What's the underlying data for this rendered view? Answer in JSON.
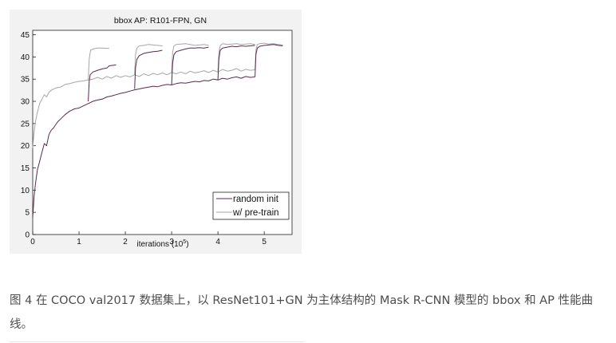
{
  "chart_data": {
    "type": "line",
    "title": "bbox AP: R101-FPN, GN",
    "xlabel": "iterations (10",
    "xlabel_exp": "5",
    "xlabel_close": ")",
    "ylabel": "",
    "xlim": [
      0,
      5.6
    ],
    "ylim": [
      0,
      46
    ],
    "xticks": [
      0,
      1,
      2,
      3,
      4,
      5
    ],
    "xtick_labels": [
      "0",
      "1",
      "2",
      "3",
      "4",
      "5"
    ],
    "yticks": [
      0,
      5,
      10,
      15,
      20,
      25,
      30,
      35,
      40,
      45
    ],
    "ytick_labels": [
      "0",
      "5",
      "10",
      "15",
      "20",
      "25",
      "30",
      "35",
      "40",
      "45"
    ],
    "grid": false,
    "legend_position": "bottom-right",
    "series": [
      {
        "name": "random init",
        "color": "#5a2a4a",
        "segments": [
          {
            "x": [
              0.0,
              0.03,
              0.06,
              0.1,
              0.15,
              0.2,
              0.25,
              0.3,
              0.35,
              0.4,
              0.45,
              0.5,
              0.55,
              0.6,
              0.7,
              0.8,
              0.9,
              1.0,
              1.1,
              1.2,
              1.3,
              1.4,
              1.5,
              1.6,
              1.7,
              1.8,
              1.9,
              2.0,
              2.1,
              2.2,
              2.3,
              2.4,
              2.5,
              2.6,
              2.7,
              2.8,
              2.9,
              3.0,
              3.1,
              3.2,
              3.3,
              3.4,
              3.5,
              3.6,
              3.7,
              3.8,
              3.9,
              4.0,
              4.1,
              4.2,
              4.3,
              4.4,
              4.5,
              4.6,
              4.7,
              4.8
            ],
            "y": [
              3.8,
              8.5,
              11.5,
              14.5,
              16.5,
              18.5,
              20.5,
              20.0,
              22.5,
              23.5,
              24.0,
              24.8,
              25.5,
              26.0,
              27.0,
              27.8,
              28.3,
              28.5,
              29.0,
              29.5,
              30.0,
              30.3,
              30.5,
              31.0,
              31.2,
              31.5,
              31.8,
              32.0,
              32.3,
              32.6,
              32.8,
              33.0,
              33.2,
              33.4,
              33.3,
              33.6,
              33.8,
              33.7,
              34.0,
              34.2,
              34.1,
              34.3,
              34.5,
              34.4,
              34.7,
              34.6,
              35.0,
              34.8,
              35.2,
              35.0,
              35.3,
              35.5,
              35.2,
              35.6,
              35.4,
              35.5
            ]
          },
          {
            "x": [
              1.2,
              1.22,
              1.24,
              1.3,
              1.4,
              1.5,
              1.6,
              1.65,
              1.8
            ],
            "y": [
              30.0,
              34.5,
              36.0,
              36.6,
              37.0,
              37.3,
              37.5,
              38.0,
              38.2
            ]
          },
          {
            "x": [
              2.2,
              2.22,
              2.25,
              2.3,
              2.4,
              2.5,
              2.6,
              2.7,
              2.8
            ],
            "y": [
              32.8,
              37.5,
              39.5,
              40.3,
              40.8,
              41.0,
              41.2,
              41.3,
              41.5
            ]
          },
          {
            "x": [
              3.0,
              3.02,
              3.05,
              3.1,
              3.2,
              3.3,
              3.4,
              3.5,
              3.6,
              3.7,
              3.8
            ],
            "y": [
              33.7,
              38.5,
              40.5,
              41.2,
              41.5,
              41.8,
              42.0,
              42.0,
              42.1,
              42.0,
              42.2
            ]
          },
          {
            "x": [
              4.0,
              4.02,
              4.05,
              4.1,
              4.2,
              4.3,
              4.4,
              4.5,
              4.6,
              4.7,
              4.8
            ],
            "y": [
              34.8,
              39.5,
              41.5,
              42.0,
              42.2,
              42.4,
              42.3,
              42.5,
              42.4,
              42.5,
              42.6
            ]
          },
          {
            "x": [
              4.8,
              4.82,
              4.85,
              4.9,
              5.0,
              5.1,
              5.2,
              5.3,
              5.4
            ],
            "y": [
              35.5,
              40.5,
              42.0,
              42.4,
              42.6,
              42.7,
              42.8,
              42.6,
              42.5
            ]
          }
        ]
      },
      {
        "name": "w/ pre-train",
        "color": "#a6a6a6",
        "segments": [
          {
            "x": [
              0.0,
              0.03,
              0.06,
              0.1,
              0.15,
              0.2,
              0.25,
              0.3,
              0.35,
              0.4,
              0.5,
              0.6,
              0.7,
              0.8,
              0.9,
              1.0,
              1.1,
              1.2,
              1.3,
              1.4,
              1.5,
              1.6,
              1.7,
              1.8,
              1.9,
              2.0,
              2.1,
              2.2,
              2.3,
              2.4,
              2.5,
              2.6,
              2.7,
              2.8,
              2.9,
              3.0,
              3.1,
              3.2,
              3.3,
              3.4,
              3.5,
              3.6,
              3.7,
              3.8,
              3.9,
              4.0,
              4.1,
              4.2,
              4.3,
              4.4,
              4.5,
              4.6,
              4.7,
              4.8
            ],
            "y": [
              19.5,
              23.0,
              25.5,
              27.5,
              29.5,
              30.5,
              31.5,
              31.0,
              32.0,
              32.5,
              33.0,
              33.2,
              33.8,
              34.0,
              34.3,
              34.5,
              34.6,
              34.8,
              35.0,
              35.4,
              35.0,
              35.6,
              35.2,
              35.8,
              35.4,
              35.8,
              35.5,
              36.0,
              35.6,
              36.2,
              35.8,
              36.3,
              36.0,
              36.4,
              36.0,
              36.5,
              36.2,
              36.6,
              36.2,
              36.8,
              36.4,
              36.6,
              36.9,
              36.5,
              37.0,
              36.6,
              37.2,
              36.8,
              37.0,
              37.4,
              36.8,
              37.2,
              37.0,
              37.1
            ]
          },
          {
            "x": [
              1.2,
              1.22,
              1.25,
              1.3,
              1.4,
              1.5,
              1.6,
              1.65
            ],
            "y": [
              34.8,
              39.5,
              41.5,
              41.8,
              42.0,
              42.0,
              41.9,
              42.0
            ]
          },
          {
            "x": [
              2.2,
              2.22,
              2.25,
              2.3,
              2.4,
              2.5,
              2.6,
              2.7,
              2.8
            ],
            "y": [
              36.0,
              40.5,
              42.0,
              42.5,
              42.6,
              42.8,
              42.7,
              42.6,
              42.5
            ]
          },
          {
            "x": [
              3.0,
              3.02,
              3.05,
              3.1,
              3.2,
              3.3,
              3.4,
              3.5,
              3.6,
              3.7,
              3.8
            ],
            "y": [
              36.5,
              41.0,
              42.5,
              42.8,
              42.9,
              43.0,
              42.8,
              42.6,
              42.7,
              42.8,
              42.6
            ]
          },
          {
            "x": [
              4.0,
              4.02,
              4.05,
              4.1,
              4.2,
              4.3,
              4.4,
              4.5,
              4.6,
              4.7,
              4.8
            ],
            "y": [
              36.6,
              41.0,
              42.5,
              43.0,
              42.8,
              42.9,
              43.0,
              42.8,
              42.9,
              43.0,
              42.8
            ]
          },
          {
            "x": [
              4.8,
              4.82,
              4.85,
              4.9,
              5.0,
              5.1,
              5.2,
              5.3,
              5.4
            ],
            "y": [
              37.1,
              41.5,
              42.8,
              43.0,
              43.1,
              42.9,
              43.0,
              42.8,
              42.7
            ]
          }
        ]
      }
    ]
  },
  "caption": "图 4 在 COCO val2017 数据集上，以 ResNet101+GN 为主体结构的 Mask R-CNN 模型的 bbox 和 AP 性能曲线。"
}
